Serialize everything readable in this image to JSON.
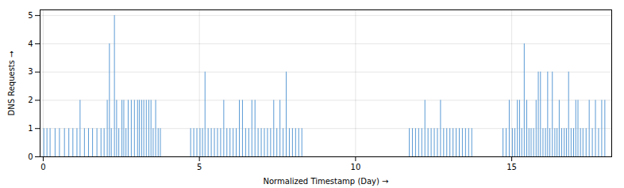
{
  "chart_data": {
    "type": "stem",
    "xlabel": "Normalized Timestamp (Day)",
    "ylabel": "DNS Requests",
    "color": "#5b9bd5",
    "grid": true,
    "xlim": [
      -0.1,
      18.2
    ],
    "ylim": [
      0,
      5.2
    ],
    "xticks": [
      0,
      5,
      10,
      15
    ],
    "yticks": [
      0,
      1,
      2,
      3,
      4,
      5
    ],
    "x": [
      0.02,
      0.12,
      0.22,
      0.38,
      0.52,
      0.68,
      0.82,
      0.95,
      1.08,
      1.18,
      1.32,
      1.45,
      1.58,
      1.72,
      1.85,
      1.95,
      2.05,
      2.12,
      2.18,
      2.28,
      2.35,
      2.42,
      2.52,
      2.58,
      2.65,
      2.72,
      2.82,
      2.92,
      3.02,
      3.08,
      3.15,
      3.22,
      3.3,
      3.38,
      3.45,
      3.52,
      3.6,
      3.68,
      3.75,
      4.72,
      4.82,
      4.92,
      5.02,
      5.1,
      5.18,
      5.28,
      5.38,
      5.48,
      5.58,
      5.68,
      5.78,
      5.88,
      5.98,
      6.08,
      6.18,
      6.28,
      6.38,
      6.48,
      6.58,
      6.68,
      6.78,
      6.88,
      6.98,
      7.08,
      7.18,
      7.28,
      7.38,
      7.48,
      7.58,
      7.68,
      7.78,
      7.88,
      7.98,
      8.08,
      8.18,
      8.28,
      11.72,
      11.82,
      11.92,
      12.02,
      12.12,
      12.22,
      12.32,
      12.42,
      12.52,
      12.62,
      12.72,
      12.82,
      12.92,
      13.02,
      13.12,
      13.22,
      13.32,
      13.42,
      13.52,
      13.62,
      13.72,
      14.72,
      14.82,
      14.92,
      15.02,
      15.1,
      15.18,
      15.25,
      15.32,
      15.4,
      15.48,
      15.55,
      15.62,
      15.7,
      15.78,
      15.85,
      15.92,
      16.0,
      16.08,
      16.15,
      16.22,
      16.3,
      16.38,
      16.45,
      16.52,
      16.6,
      16.68,
      16.75,
      16.82,
      16.9,
      16.98,
      17.05,
      17.12,
      17.2,
      17.28,
      17.38,
      17.48,
      17.58,
      17.68,
      17.78,
      17.88,
      17.98
    ],
    "values": [
      1,
      1,
      1,
      1,
      1,
      1,
      1,
      1,
      1,
      2,
      1,
      1,
      1,
      1,
      1,
      1,
      2,
      4,
      1,
      5,
      2,
      1,
      2,
      2,
      1,
      2,
      2,
      2,
      2,
      2,
      2,
      2,
      2,
      2,
      2,
      1,
      2,
      1,
      1,
      1,
      1,
      1,
      1,
      1,
      3,
      1,
      1,
      1,
      1,
      1,
      2,
      1,
      1,
      1,
      1,
      2,
      2,
      1,
      1,
      2,
      2,
      1,
      1,
      1,
      1,
      1,
      2,
      1,
      2,
      1,
      3,
      1,
      1,
      1,
      1,
      1,
      1,
      1,
      1,
      1,
      1,
      2,
      1,
      1,
      1,
      1,
      2,
      1,
      1,
      1,
      1,
      1,
      1,
      1,
      1,
      1,
      1,
      1,
      1,
      2,
      1,
      1,
      2,
      2,
      1,
      4,
      2,
      1,
      1,
      1,
      2,
      3,
      3,
      1,
      1,
      3,
      1,
      3,
      1,
      1,
      2,
      1,
      1,
      1,
      3,
      1,
      1,
      2,
      2,
      1,
      1,
      1,
      2,
      1,
      2,
      1,
      2,
      2
    ]
  }
}
